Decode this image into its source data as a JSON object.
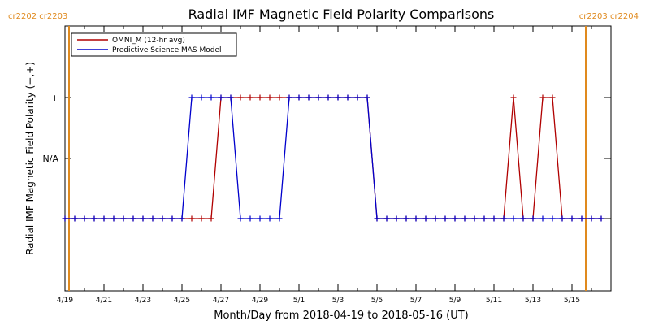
{
  "chart_data": {
    "type": "line",
    "title": "Radial IMF Magnetic Field Polarity Comparisons",
    "xlabel": "Month/Day from 2018-04-19 to 2018-05-16 (UT)",
    "ylabel": "Radial IMF Magnetic Field Polarity (−,+)",
    "xlim": [
      "2018-04-19",
      "2018-05-17"
    ],
    "x_ticks": [
      {
        "date": "2018-04-19",
        "label": "4/19"
      },
      {
        "date": "2018-04-21",
        "label": "4/21"
      },
      {
        "date": "2018-04-23",
        "label": "4/23"
      },
      {
        "date": "2018-04-25",
        "label": "4/25"
      },
      {
        "date": "2018-04-27",
        "label": "4/27"
      },
      {
        "date": "2018-04-29",
        "label": "4/29"
      },
      {
        "date": "2018-05-01",
        "label": "5/1"
      },
      {
        "date": "2018-05-03",
        "label": "5/3"
      },
      {
        "date": "2018-05-05",
        "label": "5/5"
      },
      {
        "date": "2018-05-07",
        "label": "5/7"
      },
      {
        "date": "2018-05-09",
        "label": "5/9"
      },
      {
        "date": "2018-05-11",
        "label": "5/11"
      },
      {
        "date": "2018-05-13",
        "label": "5/13"
      },
      {
        "date": "2018-05-15",
        "label": "5/15"
      }
    ],
    "y_categories": [
      "−",
      "N/A",
      "+"
    ],
    "legend_position": "top-left",
    "carrington_markers": [
      {
        "date": "2018-04-19",
        "label": "cr2202 cr2203",
        "position": "top-left"
      },
      {
        "date": "2018-05-16",
        "label": "cr2203 cr2204",
        "position": "top-right"
      }
    ],
    "series": [
      {
        "name": "OMNI_M (12-hr avg)",
        "color": "#b00000",
        "marker": "plus",
        "points": [
          [
            "2018-04-19T00:00",
            "−"
          ],
          [
            "2018-04-19T12:00",
            "−"
          ],
          [
            "2018-04-20T00:00",
            "−"
          ],
          [
            "2018-04-20T12:00",
            "−"
          ],
          [
            "2018-04-21T00:00",
            "−"
          ],
          [
            "2018-04-21T12:00",
            "−"
          ],
          [
            "2018-04-22T00:00",
            "−"
          ],
          [
            "2018-04-22T12:00",
            "−"
          ],
          [
            "2018-04-23T00:00",
            "−"
          ],
          [
            "2018-04-23T12:00",
            "−"
          ],
          [
            "2018-04-24T00:00",
            "−"
          ],
          [
            "2018-04-24T12:00",
            "−"
          ],
          [
            "2018-04-25T00:00",
            "−"
          ],
          [
            "2018-04-25T12:00",
            "−"
          ],
          [
            "2018-04-26T00:00",
            "−"
          ],
          [
            "2018-04-26T12:00",
            "−"
          ],
          [
            "2018-04-27T00:00",
            "+"
          ],
          [
            "2018-04-27T12:00",
            "+"
          ],
          [
            "2018-04-28T00:00",
            "+"
          ],
          [
            "2018-04-28T12:00",
            "+"
          ],
          [
            "2018-04-29T00:00",
            "+"
          ],
          [
            "2018-04-29T12:00",
            "+"
          ],
          [
            "2018-04-30T00:00",
            "+"
          ],
          [
            "2018-04-30T12:00",
            "+"
          ],
          [
            "2018-05-01T00:00",
            "+"
          ],
          [
            "2018-05-01T12:00",
            "+"
          ],
          [
            "2018-05-02T00:00",
            "+"
          ],
          [
            "2018-05-02T12:00",
            "+"
          ],
          [
            "2018-05-03T00:00",
            "+"
          ],
          [
            "2018-05-03T12:00",
            "+"
          ],
          [
            "2018-05-04T00:00",
            "+"
          ],
          [
            "2018-05-04T12:00",
            "+"
          ],
          [
            "2018-05-05T00:00",
            "−"
          ],
          [
            "2018-05-05T12:00",
            "−"
          ],
          [
            "2018-05-06T00:00",
            "−"
          ],
          [
            "2018-05-06T12:00",
            "−"
          ],
          [
            "2018-05-07T00:00",
            "−"
          ],
          [
            "2018-05-07T12:00",
            "−"
          ],
          [
            "2018-05-08T00:00",
            "−"
          ],
          [
            "2018-05-08T12:00",
            "−"
          ],
          [
            "2018-05-09T00:00",
            "−"
          ],
          [
            "2018-05-09T12:00",
            "−"
          ],
          [
            "2018-05-10T00:00",
            "−"
          ],
          [
            "2018-05-10T12:00",
            "−"
          ],
          [
            "2018-05-11T00:00",
            "−"
          ],
          [
            "2018-05-11T12:00",
            "−"
          ],
          [
            "2018-05-12T00:00",
            "+"
          ],
          [
            "2018-05-12T12:00",
            "−"
          ],
          [
            "2018-05-13T00:00",
            "−"
          ],
          [
            "2018-05-13T12:00",
            "+"
          ],
          [
            "2018-05-14T00:00",
            "+"
          ],
          [
            "2018-05-14T12:00",
            "−"
          ],
          [
            "2018-05-15T00:00",
            "−"
          ],
          [
            "2018-05-15T12:00",
            "−"
          ],
          [
            "2018-05-16T00:00",
            "−"
          ],
          [
            "2018-05-16T12:00",
            "−"
          ]
        ]
      },
      {
        "name": "Predictive Science MAS Model",
        "color": "#0000cc",
        "marker": "plus",
        "points": [
          [
            "2018-04-19T00:00",
            "−"
          ],
          [
            "2018-04-19T12:00",
            "−"
          ],
          [
            "2018-04-20T00:00",
            "−"
          ],
          [
            "2018-04-20T12:00",
            "−"
          ],
          [
            "2018-04-21T00:00",
            "−"
          ],
          [
            "2018-04-21T12:00",
            "−"
          ],
          [
            "2018-04-22T00:00",
            "−"
          ],
          [
            "2018-04-22T12:00",
            "−"
          ],
          [
            "2018-04-23T00:00",
            "−"
          ],
          [
            "2018-04-23T12:00",
            "−"
          ],
          [
            "2018-04-24T00:00",
            "−"
          ],
          [
            "2018-04-24T12:00",
            "−"
          ],
          [
            "2018-04-25T00:00",
            "−"
          ],
          [
            "2018-04-25T12:00",
            "+"
          ],
          [
            "2018-04-26T00:00",
            "+"
          ],
          [
            "2018-04-26T12:00",
            "+"
          ],
          [
            "2018-04-27T00:00",
            "+"
          ],
          [
            "2018-04-27T12:00",
            "+"
          ],
          [
            "2018-04-28T00:00",
            "−"
          ],
          [
            "2018-04-28T12:00",
            "−"
          ],
          [
            "2018-04-29T00:00",
            "−"
          ],
          [
            "2018-04-29T12:00",
            "−"
          ],
          [
            "2018-04-30T00:00",
            "−"
          ],
          [
            "2018-04-30T12:00",
            "+"
          ],
          [
            "2018-05-01T00:00",
            "+"
          ],
          [
            "2018-05-01T12:00",
            "+"
          ],
          [
            "2018-05-02T00:00",
            "+"
          ],
          [
            "2018-05-02T12:00",
            "+"
          ],
          [
            "2018-05-03T00:00",
            "+"
          ],
          [
            "2018-05-03T12:00",
            "+"
          ],
          [
            "2018-05-04T00:00",
            "+"
          ],
          [
            "2018-05-04T12:00",
            "+"
          ],
          [
            "2018-05-05T00:00",
            "−"
          ],
          [
            "2018-05-05T12:00",
            "−"
          ],
          [
            "2018-05-06T00:00",
            "−"
          ],
          [
            "2018-05-06T12:00",
            "−"
          ],
          [
            "2018-05-07T00:00",
            "−"
          ],
          [
            "2018-05-07T12:00",
            "−"
          ],
          [
            "2018-05-08T00:00",
            "−"
          ],
          [
            "2018-05-08T12:00",
            "−"
          ],
          [
            "2018-05-09T00:00",
            "−"
          ],
          [
            "2018-05-09T12:00",
            "−"
          ],
          [
            "2018-05-10T00:00",
            "−"
          ],
          [
            "2018-05-10T12:00",
            "−"
          ],
          [
            "2018-05-11T00:00",
            "−"
          ],
          [
            "2018-05-11T12:00",
            "−"
          ],
          [
            "2018-05-12T00:00",
            "−"
          ],
          [
            "2018-05-12T12:00",
            "−"
          ],
          [
            "2018-05-13T00:00",
            "−"
          ],
          [
            "2018-05-13T12:00",
            "−"
          ],
          [
            "2018-05-14T00:00",
            "−"
          ],
          [
            "2018-05-14T12:00",
            "−"
          ],
          [
            "2018-05-15T00:00",
            "−"
          ],
          [
            "2018-05-15T12:00",
            "−"
          ],
          [
            "2018-05-16T00:00",
            "−"
          ],
          [
            "2018-05-16T12:00",
            "−"
          ]
        ]
      }
    ],
    "colors": {
      "axis": "#000000",
      "carrington_marker": "#e08a1e"
    }
  }
}
